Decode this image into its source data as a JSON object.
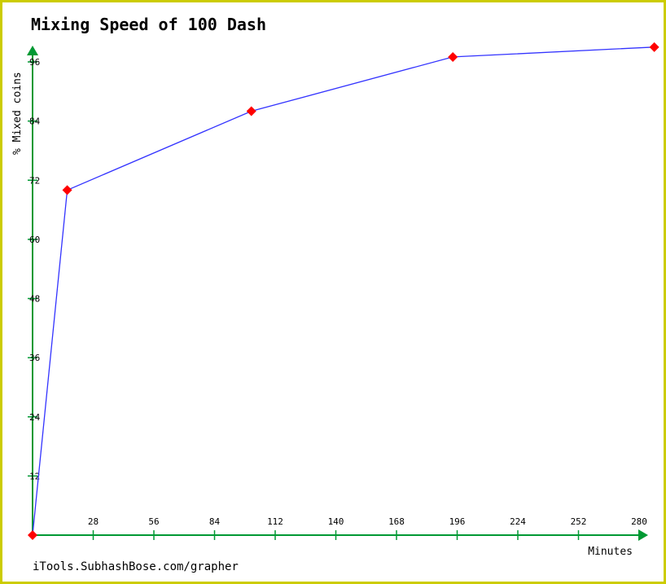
{
  "chart_data": {
    "type": "line",
    "title": "Mixing Speed of 100 Dash",
    "xlabel": "Minutes",
    "ylabel": "% Mixed coins",
    "xlim": [
      0,
      280
    ],
    "ylim": [
      0,
      96
    ],
    "x_ticks": [
      28,
      56,
      84,
      112,
      140,
      168,
      196,
      224,
      252,
      280
    ],
    "y_ticks": [
      12,
      24,
      36,
      48,
      60,
      72,
      84,
      96
    ],
    "series": [
      {
        "points": [
          {
            "x": 0,
            "y": 0
          },
          {
            "x": 16,
            "y": 70
          },
          {
            "x": 101,
            "y": 86
          },
          {
            "x": 194,
            "y": 97
          },
          {
            "x": 287,
            "y": 99
          }
        ]
      }
    ],
    "colors": {
      "line": "#3333ff",
      "marker": "#ff0000",
      "axis": "#009933",
      "frame": "#cccc00"
    }
  },
  "footer": {
    "credit": "iTools.SubhashBose.com/grapher"
  }
}
